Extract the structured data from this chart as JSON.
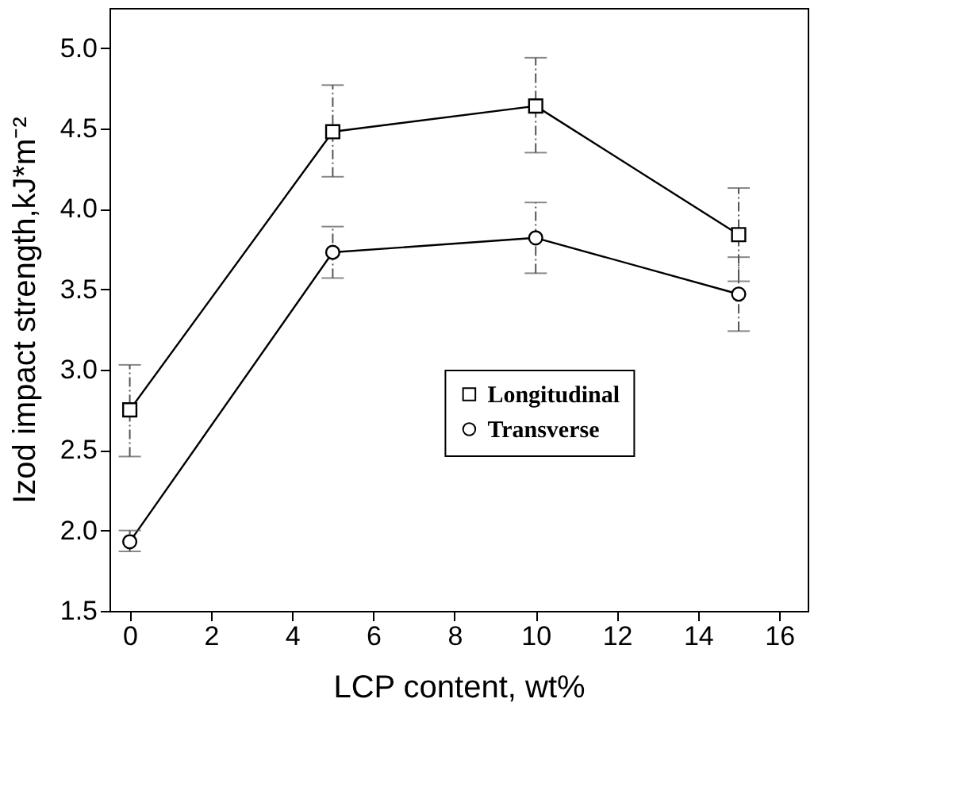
{
  "chart_data": {
    "type": "line",
    "xlabel": "LCP content, wt%",
    "ylabel": "Izod impact strength,kJ*m⁻²",
    "x": [
      0,
      5,
      10,
      15
    ],
    "series": [
      {
        "name": "Longitudinal",
        "color": "#000000",
        "marker": "square",
        "values": [
          2.75,
          4.48,
          4.64,
          3.84
        ],
        "errors": [
          [
            2.46,
            3.03
          ],
          [
            4.2,
            4.77
          ],
          [
            4.35,
            4.94
          ],
          [
            3.55,
            4.13
          ]
        ]
      },
      {
        "name": "Transverse",
        "color": "#000000",
        "marker": "circle",
        "values": [
          1.93,
          3.73,
          3.82,
          3.47
        ],
        "errors": [
          [
            1.87,
            2.0
          ],
          [
            3.57,
            3.89
          ],
          [
            3.6,
            4.04
          ],
          [
            3.24,
            3.7
          ]
        ]
      }
    ],
    "xlim": [
      -0.5,
      16.7
    ],
    "xticks": [
      0,
      2,
      4,
      6,
      8,
      10,
      12,
      14,
      16
    ],
    "ylim": [
      1.5,
      5.25
    ],
    "yticks": [
      1.5,
      {
        "value": 2,
        "label": "2.0"
      },
      2.5,
      {
        "value": 3,
        "label": "3.0"
      },
      3.5,
      {
        "value": 4,
        "label": "4.0"
      },
      4.5,
      {
        "value": 5,
        "label": "5.0"
      }
    ],
    "grid": false,
    "legend": "right",
    "line_style": "solid"
  }
}
